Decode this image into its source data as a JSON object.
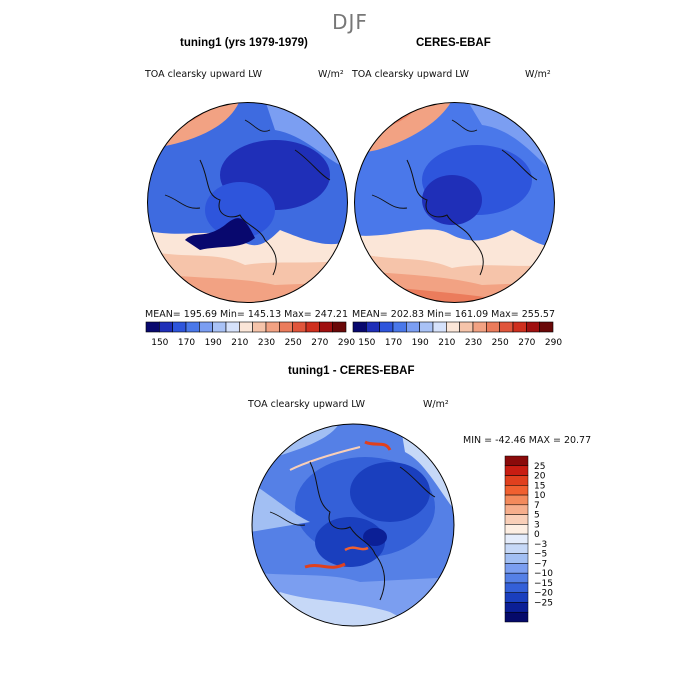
{
  "season": "DJF",
  "panels": [
    {
      "title": "tuning1 (yrs 1979-1979)",
      "variable": "TOA clearsky upward LW",
      "units": "W/m²",
      "stats": "MEAN= 195.69   Min= 145.13   Max= 247.21"
    },
    {
      "title": "CERES-EBAF",
      "variable": "TOA clearsky upward LW",
      "units": "W/m²",
      "stats": "MEAN= 202.83   Min= 161.09   Max= 255.57"
    }
  ],
  "diff_panel": {
    "title": "tuning1 - CERES-EBAF",
    "variable": "TOA clearsky upward LW",
    "units": "W/m²",
    "stats": "MIN = -42.46  MAX =  20.77"
  },
  "colorbar_top": {
    "labels": [
      "150",
      "170",
      "190",
      "210",
      "230",
      "250",
      "270",
      "290"
    ],
    "colors": [
      "#08086e",
      "#1f2fb8",
      "#2e55dc",
      "#4a78ea",
      "#7b9ef2",
      "#a9c2f6",
      "#d6e2fb",
      "#fbe6d8",
      "#f6c4aa",
      "#f2a283",
      "#eb7c5c",
      "#e0553b",
      "#cf2f1e",
      "#a01010",
      "#6a0808"
    ]
  },
  "colorbar_diff": {
    "labels": [
      "25",
      "20",
      "15",
      "10",
      "7",
      "5",
      "3",
      "0",
      "−3",
      "−5",
      "−7",
      "−10",
      "−15",
      "−20",
      "−25"
    ],
    "colors": [
      "#8a0a0a",
      "#c81d12",
      "#e0401e",
      "#f06030",
      "#f38a5c",
      "#f6ae8c",
      "#f9cfb8",
      "#fdeee2",
      "#e4ecfb",
      "#c6d8f7",
      "#a2bff3",
      "#7b9ef0",
      "#5580e6",
      "#3460d8",
      "#1a3fbe",
      "#0b1f96",
      "#050a6a"
    ]
  }
}
